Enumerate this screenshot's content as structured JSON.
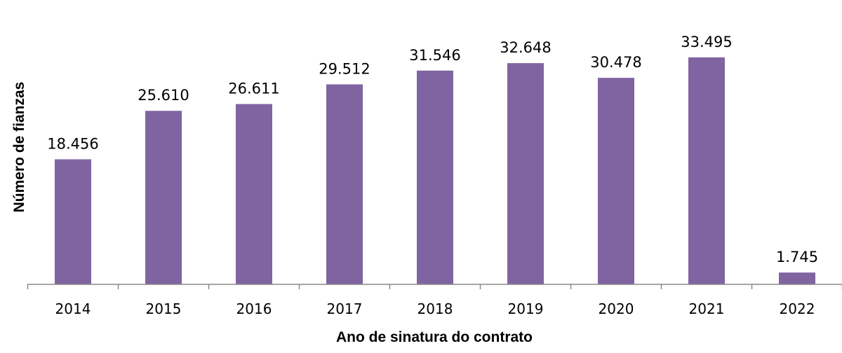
{
  "chart_data": {
    "type": "bar",
    "categories": [
      "2014",
      "2015",
      "2016",
      "2017",
      "2018",
      "2019",
      "2020",
      "2021",
      "2022"
    ],
    "values": [
      18456,
      25610,
      26611,
      29512,
      31546,
      32648,
      30478,
      33495,
      1745
    ],
    "data_labels": [
      "18.456",
      "25.610",
      "26.611",
      "29.512",
      "31.546",
      "32.648",
      "30.478",
      "33.495",
      "1.745"
    ],
    "title": "",
    "xlabel": "Ano de sinatura do contrato",
    "ylabel": "Número de  fianzas",
    "ylim": [
      0,
      40000
    ],
    "grid": false,
    "bar_color": "#8064A2"
  }
}
